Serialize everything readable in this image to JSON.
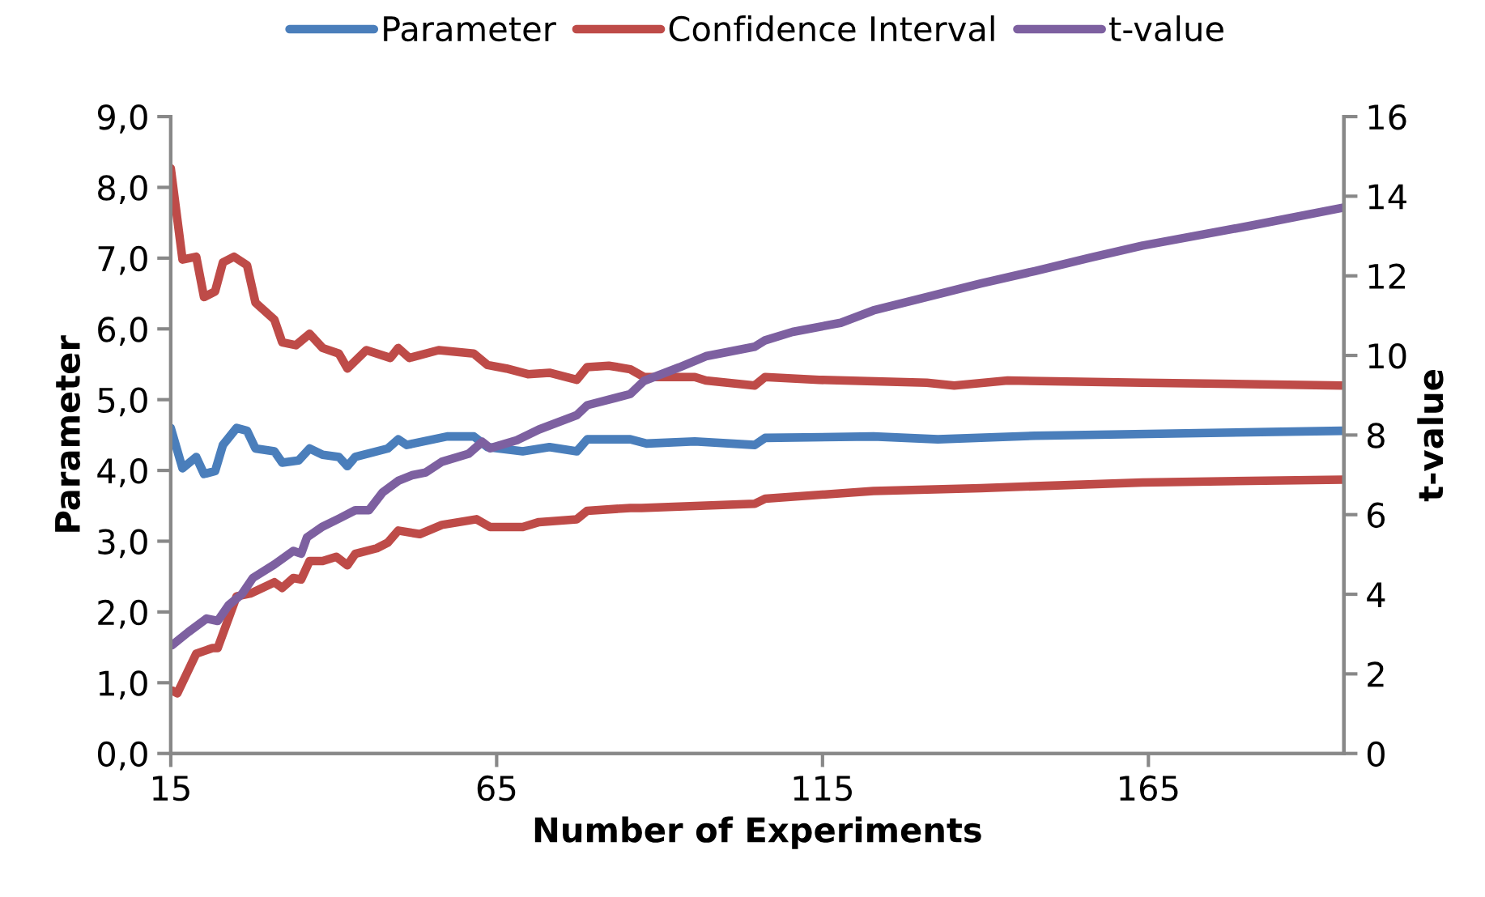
{
  "chart_data": {
    "type": "line",
    "xlabel": "Number of Experiments",
    "ylabel": "Parameter",
    "y2label": "t-value",
    "xlim": [
      15,
      195
    ],
    "xticks": [
      15,
      65,
      115,
      165
    ],
    "ylim": [
      0,
      9
    ],
    "yticks": [
      {
        "value": 0,
        "label": "0,0"
      },
      {
        "value": 1,
        "label": "1,0"
      },
      {
        "value": 2,
        "label": "2,0"
      },
      {
        "value": 3,
        "label": "3,0"
      },
      {
        "value": 4,
        "label": "4,0"
      },
      {
        "value": 5,
        "label": "5,0"
      },
      {
        "value": 6,
        "label": "6,0"
      },
      {
        "value": 7,
        "label": "7,0"
      },
      {
        "value": 8,
        "label": "8,0"
      },
      {
        "value": 9,
        "label": "9,0"
      }
    ],
    "y2lim": [
      0,
      16
    ],
    "y2ticks": [
      0,
      2,
      4,
      6,
      8,
      10,
      12,
      14,
      16
    ],
    "legend": "top",
    "grid": false,
    "marker": "none",
    "line_style": "solid",
    "series": [
      {
        "name": "Parameter",
        "color": "#4a7ebb",
        "x": [
          15,
          16.8,
          18.9,
          20.1,
          21.8,
          23,
          25.1,
          26.7,
          28,
          30.9,
          32.1,
          34.6,
          36.3,
          38.3,
          40.8,
          42.1,
          43.3,
          48.3,
          49.9,
          51.2,
          57.4,
          61.5,
          63.6,
          69,
          73.1,
          77.3,
          78.9,
          85.5,
          88,
          95.4,
          104.6,
          106.2,
          122.8,
          132.7,
          147.6,
          194.8
        ],
        "values": [
          4.6,
          4.03,
          4.19,
          3.95,
          3.99,
          4.36,
          4.6,
          4.56,
          4.31,
          4.27,
          4.11,
          4.14,
          4.31,
          4.22,
          4.19,
          4.06,
          4.19,
          4.31,
          4.44,
          4.36,
          4.48,
          4.48,
          4.33,
          4.27,
          4.33,
          4.27,
          4.44,
          4.44,
          4.38,
          4.41,
          4.36,
          4.46,
          4.48,
          4.44,
          4.49,
          4.56
        ]
      },
      {
        "name": "Confidence Interval",
        "color": "#be4b48",
        "x": [
          15,
          16.8,
          18.9,
          20.1,
          21.8,
          23,
          24.7,
          26.7,
          28,
          30.9,
          32.1,
          34.2,
          36.3,
          38.3,
          40.8,
          42.1,
          45,
          48.7,
          49.9,
          51.6,
          56.1,
          61.5,
          63.6,
          66.5,
          69.8,
          73.1,
          77.3,
          78.9,
          82.2,
          85.5,
          87.6,
          95.4,
          97.1,
          104.6,
          106.2,
          114.5,
          131,
          135.2,
          143.4,
          164.1,
          194.8
        ],
        "values": [
          8.27,
          6.98,
          7.02,
          6.45,
          6.53,
          6.94,
          7.02,
          6.9,
          6.37,
          6.13,
          5.81,
          5.77,
          5.93,
          5.73,
          5.65,
          5.44,
          5.7,
          5.59,
          5.73,
          5.59,
          5.7,
          5.65,
          5.49,
          5.44,
          5.36,
          5.38,
          5.28,
          5.46,
          5.48,
          5.43,
          5.32,
          5.32,
          5.27,
          5.2,
          5.32,
          5.28,
          5.24,
          5.2,
          5.27,
          5.24,
          5.2
        ]
      },
      {
        "color": "#be4b48",
        "x": [
          15.2,
          16,
          18.9,
          21.4,
          22.2,
          25.1,
          27.2,
          30.9,
          32.1,
          33.8,
          35,
          36.3,
          38.3,
          40.4,
          42.1,
          43.3,
          46.6,
          48.3,
          49.9,
          53.2,
          56.6,
          61.9,
          64,
          69,
          71.5,
          77.3,
          78.9,
          85.5,
          87.2,
          104.6,
          106.2,
          122.8,
          139.3,
          164.1,
          194.8
        ],
        "values": [
          0.89,
          0.85,
          1.41,
          1.49,
          1.49,
          2.22,
          2.26,
          2.42,
          2.34,
          2.48,
          2.46,
          2.72,
          2.72,
          2.78,
          2.66,
          2.82,
          2.9,
          2.98,
          3.15,
          3.1,
          3.23,
          3.31,
          3.2,
          3.2,
          3.27,
          3.31,
          3.43,
          3.47,
          3.47,
          3.53,
          3.6,
          3.71,
          3.75,
          3.83,
          3.87
        ]
      },
      {
        "name": "t-value",
        "color": "#7d60a0",
        "axis": "y2",
        "x": [
          15.2,
          17.7,
          20.5,
          22.2,
          23.9,
          25.9,
          27.6,
          30.9,
          33.8,
          35,
          35.9,
          38.3,
          40.8,
          43.3,
          45.4,
          47.5,
          49.9,
          52,
          54.1,
          56.6,
          60.7,
          62.8,
          64,
          68.1,
          71.5,
          77.3,
          78.9,
          85.5,
          87.6,
          93,
          97.1,
          104.6,
          106.2,
          110.4,
          117.8,
          122.8,
          131,
          139.3,
          147.6,
          155.9,
          164.1,
          180.7,
          194.8
        ],
        "values": [
          2.72,
          3.05,
          3.39,
          3.33,
          3.73,
          4.0,
          4.41,
          4.75,
          5.09,
          5.02,
          5.43,
          5.7,
          5.9,
          6.11,
          6.11,
          6.56,
          6.85,
          6.99,
          7.06,
          7.33,
          7.53,
          7.83,
          7.67,
          7.87,
          8.14,
          8.5,
          8.75,
          9.03,
          9.36,
          9.7,
          9.98,
          10.22,
          10.38,
          10.59,
          10.82,
          11.13,
          11.47,
          11.81,
          12.12,
          12.45,
          12.76,
          13.26,
          13.71
        ]
      }
    ]
  }
}
